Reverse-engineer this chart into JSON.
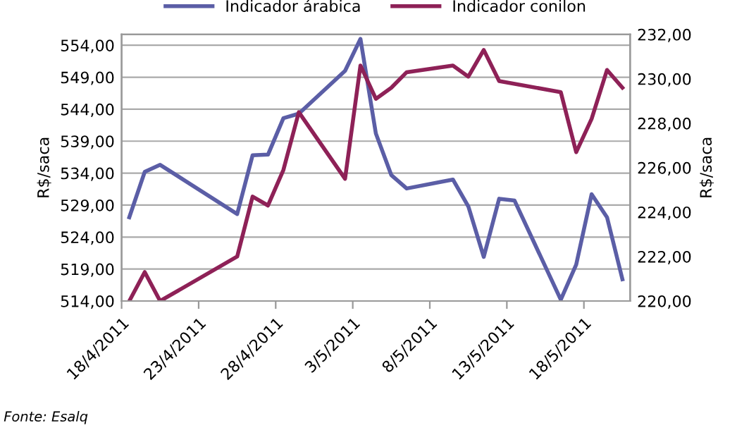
{
  "chart_data": {
    "type": "line",
    "ylabel": "R$/saca",
    "y2label": "R$/saca",
    "annotations": [
      "Fonte: Esalq"
    ],
    "legend": "top",
    "grid": "y",
    "marker": "none",
    "line_style": "solid",
    "xlim": [
      "2011-04-17T12:00",
      "2011-05-20T12:00"
    ],
    "xticks": [
      {
        "value": "2011-04-17T12:00",
        "label": "18/4/2011"
      },
      {
        "value": "2011-04-22T12:00",
        "label": "23/4/2011"
      },
      {
        "value": "2011-04-27T12:00",
        "label": "28/4/2011"
      },
      {
        "value": "2011-05-02T12:00",
        "label": "3/5/2011"
      },
      {
        "value": "2011-05-07T12:00",
        "label": "8/5/2011"
      },
      {
        "value": "2011-05-12T12:00",
        "label": "13/5/2011"
      },
      {
        "value": "2011-05-17T12:00",
        "label": "18/5/2011"
      }
    ],
    "ylim": [
      514,
      555.7
    ],
    "yticks": [
      {
        "value": 514,
        "label": "514,00"
      },
      {
        "value": 519,
        "label": "519,00"
      },
      {
        "value": 524,
        "label": "524,00"
      },
      {
        "value": 529,
        "label": "529,00"
      },
      {
        "value": 534,
        "label": "534,00"
      },
      {
        "value": 539,
        "label": "539,00"
      },
      {
        "value": 544,
        "label": "544,00"
      },
      {
        "value": 549,
        "label": "549,00"
      },
      {
        "value": 554,
        "label": "554,00"
      }
    ],
    "y2lim": [
      220,
      232
    ],
    "y2ticks": [
      {
        "value": 220,
        "label": "220,00"
      },
      {
        "value": 222,
        "label": "222,00"
      },
      {
        "value": 224,
        "label": "224,00"
      },
      {
        "value": 226,
        "label": "226,00"
      },
      {
        "value": 228,
        "label": "228,00"
      },
      {
        "value": 230,
        "label": "230,00"
      },
      {
        "value": 232,
        "label": "232,00"
      }
    ],
    "series": [
      {
        "name": "Indicador árabica",
        "color": "#5b5ea6",
        "x": [
          "2011-04-18",
          "2011-04-19",
          "2011-04-20",
          "2011-04-25",
          "2011-04-26",
          "2011-04-27",
          "2011-04-28",
          "2011-04-29",
          "2011-05-02",
          "2011-05-03",
          "2011-05-04",
          "2011-05-05",
          "2011-05-06",
          "2011-05-09",
          "2011-05-10",
          "2011-05-11",
          "2011-05-12",
          "2011-05-13",
          "2011-05-16",
          "2011-05-17",
          "2011-05-18",
          "2011-05-19",
          "2011-05-20"
        ],
        "values": [
          527.1,
          534.2,
          535.3,
          527.6,
          536.8,
          536.9,
          542.6,
          543.3,
          550.0,
          555.0,
          540.2,
          533.7,
          531.6,
          533.0,
          528.8,
          520.9,
          530.0,
          529.7,
          514.2,
          519.7,
          530.7,
          527.1,
          517.4
        ]
      },
      {
        "name": "Indicador conilon",
        "color": "#8e2157",
        "axis": "y2",
        "x": [
          "2011-04-18",
          "2011-04-19",
          "2011-04-20",
          "2011-04-25",
          "2011-04-26",
          "2011-04-27",
          "2011-04-28",
          "2011-04-29",
          "2011-05-02",
          "2011-05-03",
          "2011-05-04",
          "2011-05-05",
          "2011-05-06",
          "2011-05-09",
          "2011-05-10",
          "2011-05-11",
          "2011-05-12",
          "2011-05-16",
          "2011-05-17",
          "2011-05-18",
          "2011-05-19",
          "2011-05-20"
        ],
        "values": [
          220.0,
          221.3,
          220.0,
          222.0,
          224.7,
          224.3,
          225.9,
          228.5,
          225.5,
          230.6,
          229.1,
          229.6,
          230.3,
          230.6,
          230.1,
          231.3,
          229.9,
          229.4,
          226.7,
          228.2,
          230.4,
          229.6
        ]
      }
    ]
  }
}
